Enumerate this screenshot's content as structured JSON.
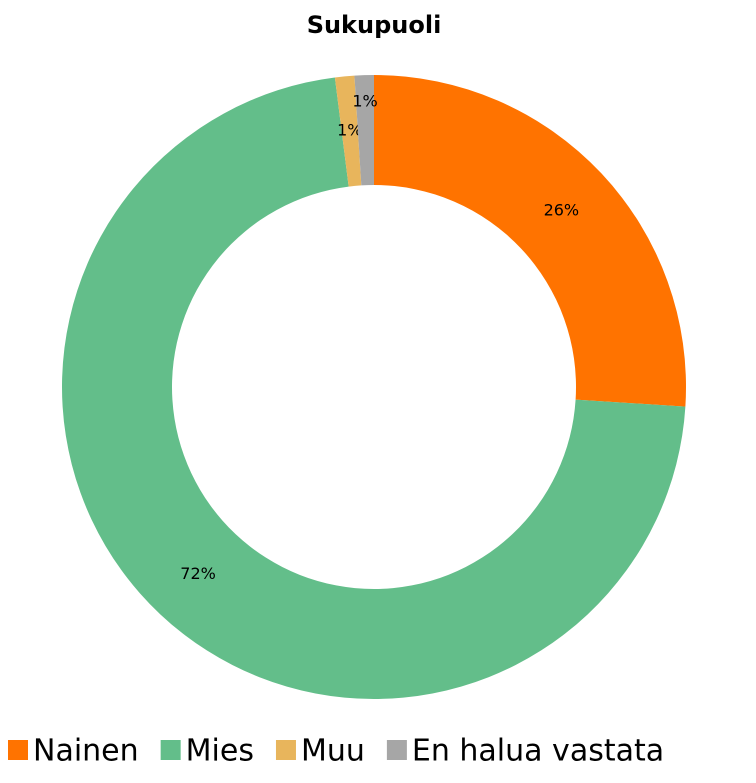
{
  "chart_data": {
    "type": "donut",
    "title": "Sukupuoli",
    "categories": [
      "Nainen",
      "Mies",
      "Muu",
      "En halua vastata"
    ],
    "values": [
      26,
      72,
      1,
      1
    ],
    "value_labels": [
      "26%",
      "72%",
      "1%",
      "1%"
    ],
    "colors": [
      "#ff7300",
      "#63be8a",
      "#e8b55c",
      "#a6a6a6"
    ],
    "legend": "bottom"
  }
}
